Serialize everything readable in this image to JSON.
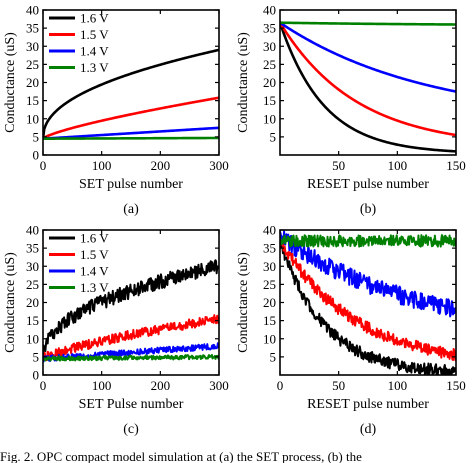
{
  "caption": "Fig. 2.  OPC compact model simulation at (a) the SET process, (b) the",
  "chart_data": [
    {
      "panel": "(a)",
      "type": "line",
      "xlabel": "SET pulse number",
      "ylabel": "Conductance (uS)",
      "xlim": [
        0,
        300
      ],
      "ylim": [
        0,
        40
      ],
      "xticks": [
        0,
        100,
        200,
        300
      ],
      "yticks": [
        0,
        5,
        10,
        15,
        20,
        25,
        30,
        35,
        40
      ],
      "legend": "top-left",
      "model": "set",
      "series": [
        {
          "name": "1.6 V",
          "color": "#000000",
          "start": 4.5,
          "end": 29.0,
          "k": 0.45
        },
        {
          "name": "1.5 V",
          "color": "#ff0000",
          "start": 4.5,
          "end": 15.8,
          "k": 0.75
        },
        {
          "name": "1.4 V",
          "color": "#0000ff",
          "start": 4.5,
          "end": 7.5,
          "k": 1.0
        },
        {
          "name": "1.3 V",
          "color": "#008000",
          "start": 4.5,
          "end": 4.7,
          "k": 1.0
        }
      ]
    },
    {
      "panel": "(b)",
      "type": "line",
      "xlabel": "RESET pulse number",
      "ylabel": "Conductance (uS)",
      "xlim": [
        0,
        150
      ],
      "ylim": [
        0,
        40
      ],
      "xticks": [
        50,
        100,
        150
      ],
      "yticks": [
        5,
        10,
        15,
        20,
        25,
        30,
        35,
        40
      ],
      "model": "reset",
      "series": [
        {
          "color": "#000000",
          "start": 36.5,
          "end": 1.0,
          "k": 4.0
        },
        {
          "color": "#ff0000",
          "start": 36.5,
          "end": 5.5,
          "k": 2.3
        },
        {
          "color": "#0000ff",
          "start": 36.5,
          "end": 17.5,
          "k": 1.2
        },
        {
          "color": "#008000",
          "start": 36.5,
          "end": 36.0,
          "k": 1.0
        }
      ]
    },
    {
      "panel": "(c)",
      "type": "line",
      "xlabel": "SET Pulse number",
      "ylabel": "Conductance (uS)",
      "xlim": [
        0,
        300
      ],
      "ylim": [
        0,
        40
      ],
      "xticks": [
        0,
        100,
        200,
        300
      ],
      "yticks": [
        0,
        5,
        10,
        15,
        20,
        25,
        30,
        35,
        40
      ],
      "legend": "top-left",
      "model": "set",
      "series": [
        {
          "name": "1.6 V",
          "color": "#000000",
          "start": 4.5,
          "end": 30.0,
          "k": 0.45,
          "noise": 2.0
        },
        {
          "name": "1.5 V",
          "color": "#ff0000",
          "start": 4.5,
          "end": 15.5,
          "k": 0.75,
          "noise": 1.3
        },
        {
          "name": "1.4 V",
          "color": "#0000ff",
          "start": 4.5,
          "end": 8.0,
          "k": 1.0,
          "noise": 0.8
        },
        {
          "name": "1.3 V",
          "color": "#008000",
          "start": 4.5,
          "end": 5.0,
          "k": 1.0,
          "noise": 0.6
        }
      ]
    },
    {
      "panel": "(d)",
      "type": "line",
      "xlabel": "RESET pulse number",
      "ylabel": "Conductance (uS)",
      "xlim": [
        0,
        150
      ],
      "ylim": [
        0,
        40
      ],
      "xticks": [
        0,
        50,
        100,
        150
      ],
      "yticks": [
        5,
        10,
        15,
        20,
        25,
        30,
        35,
        40
      ],
      "model": "reset",
      "series": [
        {
          "color": "#000000",
          "start": 37.0,
          "end": 1.0,
          "k": 4.0,
          "noise": 1.6
        },
        {
          "color": "#ff0000",
          "start": 37.0,
          "end": 5.5,
          "k": 2.3,
          "noise": 1.6
        },
        {
          "color": "#0000ff",
          "start": 38.0,
          "end": 18.0,
          "k": 1.2,
          "noise": 2.5
        },
        {
          "color": "#008000",
          "start": 37.0,
          "end": 37.0,
          "k": 1.0,
          "noise": 1.6
        }
      ]
    }
  ]
}
